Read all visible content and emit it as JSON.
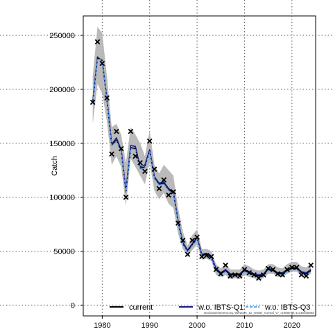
{
  "chart_data": {
    "type": "line",
    "title": "",
    "xlabel": "",
    "ylabel": "Catch",
    "xlim": [
      1976,
      2025
    ],
    "ylim": [
      -10000,
      268000
    ],
    "x_ticks": [
      1980,
      1990,
      2000,
      2010,
      2020
    ],
    "y_ticks": [
      0,
      50000,
      100000,
      150000,
      200000,
      250000
    ],
    "y_tick_labels": [
      "0",
      "50000",
      "100000",
      "150000",
      "200000",
      "250000"
    ],
    "grid": true,
    "legend_position": "bottom",
    "legend": [
      {
        "label": "current",
        "color": "#000000",
        "dash": "solid"
      },
      {
        "label": "w.o. IBTS-Q1",
        "color": "#1a1a80",
        "dash": "solid"
      },
      {
        "label": "w.o. IBTS-Q3",
        "color": "#5fa8e8",
        "dash": "dashed"
      }
    ],
    "footnote": "stockassessment.org, BW2026_12_newID_normal_v7_r19580 git-1cc464b808d",
    "x": [
      1978,
      1979,
      1980,
      1981,
      1982,
      1983,
      1984,
      1985,
      1986,
      1987,
      1988,
      1989,
      1990,
      1991,
      1992,
      1993,
      1994,
      1995,
      1996,
      1997,
      1998,
      1999,
      2000,
      2001,
      2002,
      2003,
      2004,
      2005,
      2006,
      2007,
      2008,
      2009,
      2010,
      2011,
      2012,
      2013,
      2014,
      2015,
      2016,
      2017,
      2018,
      2019,
      2020,
      2021,
      2022,
      2023,
      2024
    ],
    "observed": [
      188000,
      244000,
      224000,
      192000,
      140000,
      161000,
      145000,
      100000,
      161000,
      138000,
      132000,
      124000,
      152000,
      126000,
      108000,
      116000,
      102000,
      105000,
      76000,
      60000,
      47000,
      60000,
      63000,
      45000,
      46000,
      45000,
      33000,
      29000,
      37000,
      27000,
      28000,
      27000,
      33000,
      30000,
      28000,
      25000,
      28000,
      34000,
      33000,
      29000,
      28000,
      33000,
      35000,
      35000,
      28000,
      27000,
      37000
    ],
    "upper": [
      212000,
      258000,
      252000,
      212000,
      165000,
      168000,
      158000,
      132000,
      165000,
      158000,
      150000,
      138000,
      162000,
      130000,
      122000,
      130000,
      125000,
      120000,
      90000,
      68000,
      55000,
      65000,
      70000,
      52000,
      52000,
      50000,
      38000,
      34000,
      38000,
      33000,
      33000,
      33000,
      38000,
      36000,
      33000,
      32000,
      33000,
      38000,
      38000,
      35000,
      34000,
      38000,
      40000,
      40000,
      36000,
      35000,
      38000
    ],
    "lower": [
      168000,
      205000,
      196000,
      170000,
      130000,
      138000,
      128000,
      92000,
      136000,
      128000,
      120000,
      112000,
      132000,
      106000,
      98000,
      104000,
      94000,
      90000,
      66000,
      52000,
      45000,
      51000,
      56000,
      42000,
      43000,
      41000,
      28000,
      26000,
      28000,
      24000,
      25000,
      24000,
      28000,
      26000,
      25000,
      23000,
      25000,
      29000,
      29000,
      26000,
      26000,
      29000,
      31000,
      31000,
      27000,
      26000,
      29000
    ],
    "series": [
      {
        "name": "current",
        "values": [
          188000,
          229000,
          227000,
          190000,
          148000,
          153000,
          143000,
          105000,
          146000,
          145000,
          127000,
          128000,
          143000,
          118000,
          112000,
          113000,
          107000,
          104000,
          77000,
          57000,
          50000,
          56000,
          62000,
          46000,
          47000,
          44000,
          33000,
          29000,
          32000,
          28000,
          28000,
          28000,
          32000,
          30000,
          28000,
          27000,
          28000,
          33000,
          32000,
          29000,
          29000,
          32000,
          34000,
          34000,
          30000,
          29000,
          32000
        ]
      },
      {
        "name": "w.o. IBTS-Q1",
        "values": [
          189000,
          230000,
          226000,
          191000,
          149000,
          155000,
          144000,
          106000,
          148000,
          147000,
          128000,
          130000,
          144000,
          119000,
          113000,
          114000,
          108000,
          105000,
          78000,
          58000,
          51000,
          57000,
          63000,
          47000,
          48000,
          45000,
          34000,
          30000,
          33000,
          29000,
          29000,
          29000,
          33000,
          31000,
          29000,
          28000,
          29000,
          34000,
          33000,
          30000,
          30000,
          33000,
          35000,
          35000,
          31000,
          30000,
          33000
        ]
      },
      {
        "name": "w.o. IBTS-Q3",
        "values": [
          187000,
          228000,
          227000,
          189000,
          147000,
          152000,
          142000,
          104000,
          145000,
          144000,
          126000,
          127000,
          142000,
          117000,
          111000,
          112000,
          106000,
          103000,
          76000,
          56000,
          49000,
          55000,
          61000,
          45000,
          46000,
          43000,
          32000,
          28000,
          31000,
          27000,
          27000,
          27000,
          31000,
          29000,
          27000,
          26000,
          27000,
          32000,
          31000,
          28000,
          28000,
          31000,
          33000,
          33000,
          29000,
          28000,
          31000
        ]
      }
    ]
  }
}
